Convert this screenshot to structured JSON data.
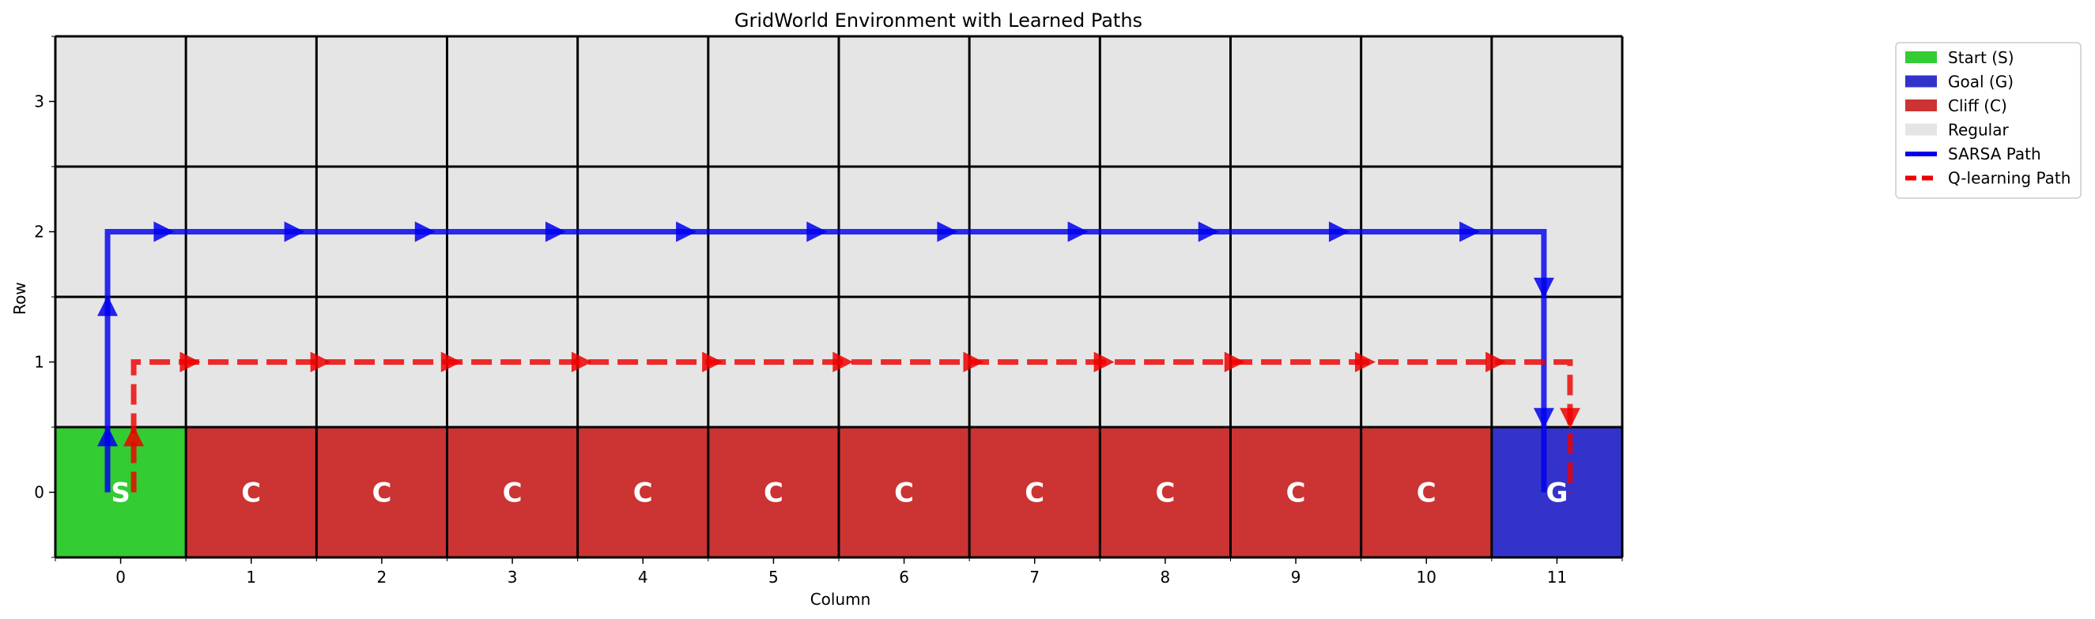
{
  "chart_data": {
    "type": "heatmap",
    "title": "GridWorld Environment with Learned Paths",
    "xlabel": "Column",
    "ylabel": "Row",
    "grid": {
      "cols": 12,
      "rows": 4,
      "xlim": [
        -0.5,
        11.5
      ],
      "ylim": [
        -0.5,
        3.5
      ],
      "x_ticks": [
        "0",
        "1",
        "2",
        "3",
        "4",
        "5",
        "6",
        "7",
        "8",
        "9",
        "10",
        "11"
      ],
      "y_ticks": [
        "0",
        "1",
        "2",
        "3"
      ],
      "cells": [
        {
          "row": 0,
          "col": 0,
          "type": "start",
          "label": "S"
        },
        {
          "row": 0,
          "col": 1,
          "type": "cliff",
          "label": "C"
        },
        {
          "row": 0,
          "col": 2,
          "type": "cliff",
          "label": "C"
        },
        {
          "row": 0,
          "col": 3,
          "type": "cliff",
          "label": "C"
        },
        {
          "row": 0,
          "col": 4,
          "type": "cliff",
          "label": "C"
        },
        {
          "row": 0,
          "col": 5,
          "type": "cliff",
          "label": "C"
        },
        {
          "row": 0,
          "col": 6,
          "type": "cliff",
          "label": "C"
        },
        {
          "row": 0,
          "col": 7,
          "type": "cliff",
          "label": "C"
        },
        {
          "row": 0,
          "col": 8,
          "type": "cliff",
          "label": "C"
        },
        {
          "row": 0,
          "col": 9,
          "type": "cliff",
          "label": "C"
        },
        {
          "row": 0,
          "col": 10,
          "type": "cliff",
          "label": "C"
        },
        {
          "row": 0,
          "col": 11,
          "type": "goal",
          "label": "G"
        }
      ]
    },
    "colors": {
      "start": "#33cc33",
      "goal": "#3333cc",
      "cliff": "#cc3333",
      "regular": "#e5e5e5",
      "sarsa": "#0000ee",
      "qlearning": "#ee0000"
    },
    "series": [
      {
        "name": "SARSA Path",
        "style": "solid",
        "color": "#0000ee",
        "points": [
          [
            0,
            0
          ],
          [
            0,
            1
          ],
          [
            0,
            2
          ],
          [
            1,
            2
          ],
          [
            2,
            2
          ],
          [
            3,
            2
          ],
          [
            4,
            2
          ],
          [
            5,
            2
          ],
          [
            6,
            2
          ],
          [
            7,
            2
          ],
          [
            8,
            2
          ],
          [
            9,
            2
          ],
          [
            10,
            2
          ],
          [
            11,
            2
          ],
          [
            11,
            1
          ],
          [
            11,
            0
          ]
        ]
      },
      {
        "name": "Q-learning Path",
        "style": "dashed",
        "color": "#ee0000",
        "points": [
          [
            0,
            0
          ],
          [
            0,
            1
          ],
          [
            1,
            1
          ],
          [
            2,
            1
          ],
          [
            3,
            1
          ],
          [
            4,
            1
          ],
          [
            5,
            1
          ],
          [
            6,
            1
          ],
          [
            7,
            1
          ],
          [
            8,
            1
          ],
          [
            9,
            1
          ],
          [
            10,
            1
          ],
          [
            11,
            1
          ],
          [
            11,
            0
          ]
        ]
      }
    ],
    "legend": {
      "placement": "outside-upper-right",
      "items": [
        {
          "label": "Start (S)",
          "kind": "patch",
          "color": "#33cc33"
        },
        {
          "label": "Goal (G)",
          "kind": "patch",
          "color": "#3333cc"
        },
        {
          "label": "Cliff (C)",
          "kind": "patch",
          "color": "#cc3333"
        },
        {
          "label": "Regular",
          "kind": "patch",
          "color": "#e5e5e5"
        },
        {
          "label": "SARSA Path",
          "kind": "line",
          "color": "#0000ee",
          "dash": false
        },
        {
          "label": "Q-learning Path",
          "kind": "line",
          "color": "#ee0000",
          "dash": true
        }
      ]
    }
  }
}
